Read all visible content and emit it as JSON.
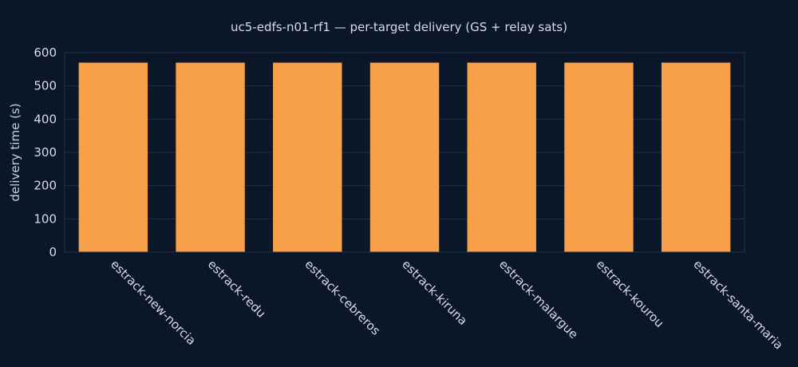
{
  "chart_data": {
    "type": "bar",
    "title": "uc5-edfs-n01-rf1 — per-target delivery (GS + relay sats)",
    "xlabel": "",
    "ylabel": "delivery time (s)",
    "ylim": [
      0,
      600
    ],
    "yticks": [
      0,
      100,
      200,
      300,
      400,
      500,
      600
    ],
    "categories": [
      "estrack-new-norcia",
      "estrack-redu",
      "estrack-cebreros",
      "estrack-kiruna",
      "estrack-malargue",
      "estrack-kourou",
      "estrack-santa-maria"
    ],
    "values": [
      570,
      570,
      570,
      570,
      570,
      570,
      570
    ],
    "grid": true,
    "legend": "none"
  },
  "colors": {
    "background": "#0b1628",
    "bar": "#f7a04a",
    "grid": "#1f2d45",
    "text": "#d7dde8"
  }
}
